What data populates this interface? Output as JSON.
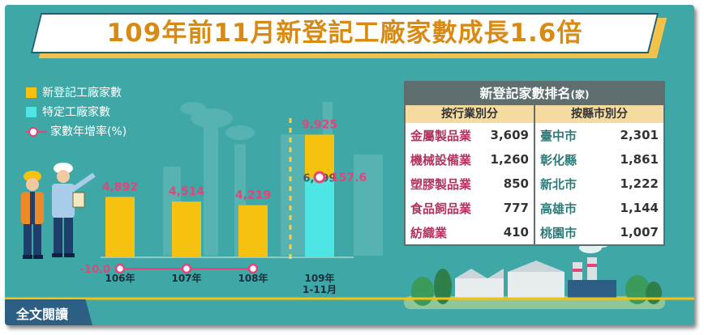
{
  "title": "109年前11月新登記工廠家數成長1.6倍",
  "legend": {
    "new": "新登記工廠家數",
    "specific": "特定工廠家數",
    "growth": "家數年增率(%)"
  },
  "colors": {
    "background": "#3fa7a6",
    "bar_yellow": "#f7c10f",
    "bar_cyan": "#4ee6e4",
    "growth_line": "#e2457a",
    "title_text": "#d88a12"
  },
  "chart_data": {
    "type": "bar",
    "categories": [
      "106年",
      "107年",
      "108年",
      "109年\n1-11月"
    ],
    "category_lines": [
      [
        "106年"
      ],
      [
        "107年"
      ],
      [
        "108年"
      ],
      [
        "109年",
        "1-11月"
      ]
    ],
    "series": [
      {
        "name": "新登記工廠家數",
        "values": [
          4892,
          4514,
          4219,
          9925
        ]
      },
      {
        "name": "特定工廠家數",
        "values": [
          null,
          null,
          null,
          6399
        ]
      },
      {
        "name": "家數年增率(%)",
        "values": [
          null,
          null,
          null,
          157.6
        ]
      }
    ],
    "value_labels": [
      "4,892",
      "4,514",
      "4,219",
      "9,925"
    ],
    "specific_label": "6,399",
    "growth_label_last": "157.6",
    "growth_label_first": "-10.0",
    "ylim": [
      0,
      11000
    ]
  },
  "ranking": {
    "title": "新登記家數排名",
    "unit": "(家)",
    "industry_head": "按行業別分",
    "county_head": "按縣市別分",
    "industry": [
      {
        "name": "金屬製品業",
        "value": "3,609"
      },
      {
        "name": "機械設備業",
        "value": "1,260"
      },
      {
        "name": "塑膠製品業",
        "value": "850"
      },
      {
        "name": "食品飼品業",
        "value": "777"
      },
      {
        "name": "紡織業",
        "value": "410"
      }
    ],
    "county": [
      {
        "name": "臺中市",
        "value": "2,301"
      },
      {
        "name": "彰化縣",
        "value": "1,861"
      },
      {
        "name": "新北市",
        "value": "1,222"
      },
      {
        "name": "高雄市",
        "value": "1,144"
      },
      {
        "name": "桃園市",
        "value": "1,007"
      }
    ]
  },
  "read_full": "全文閱讀"
}
